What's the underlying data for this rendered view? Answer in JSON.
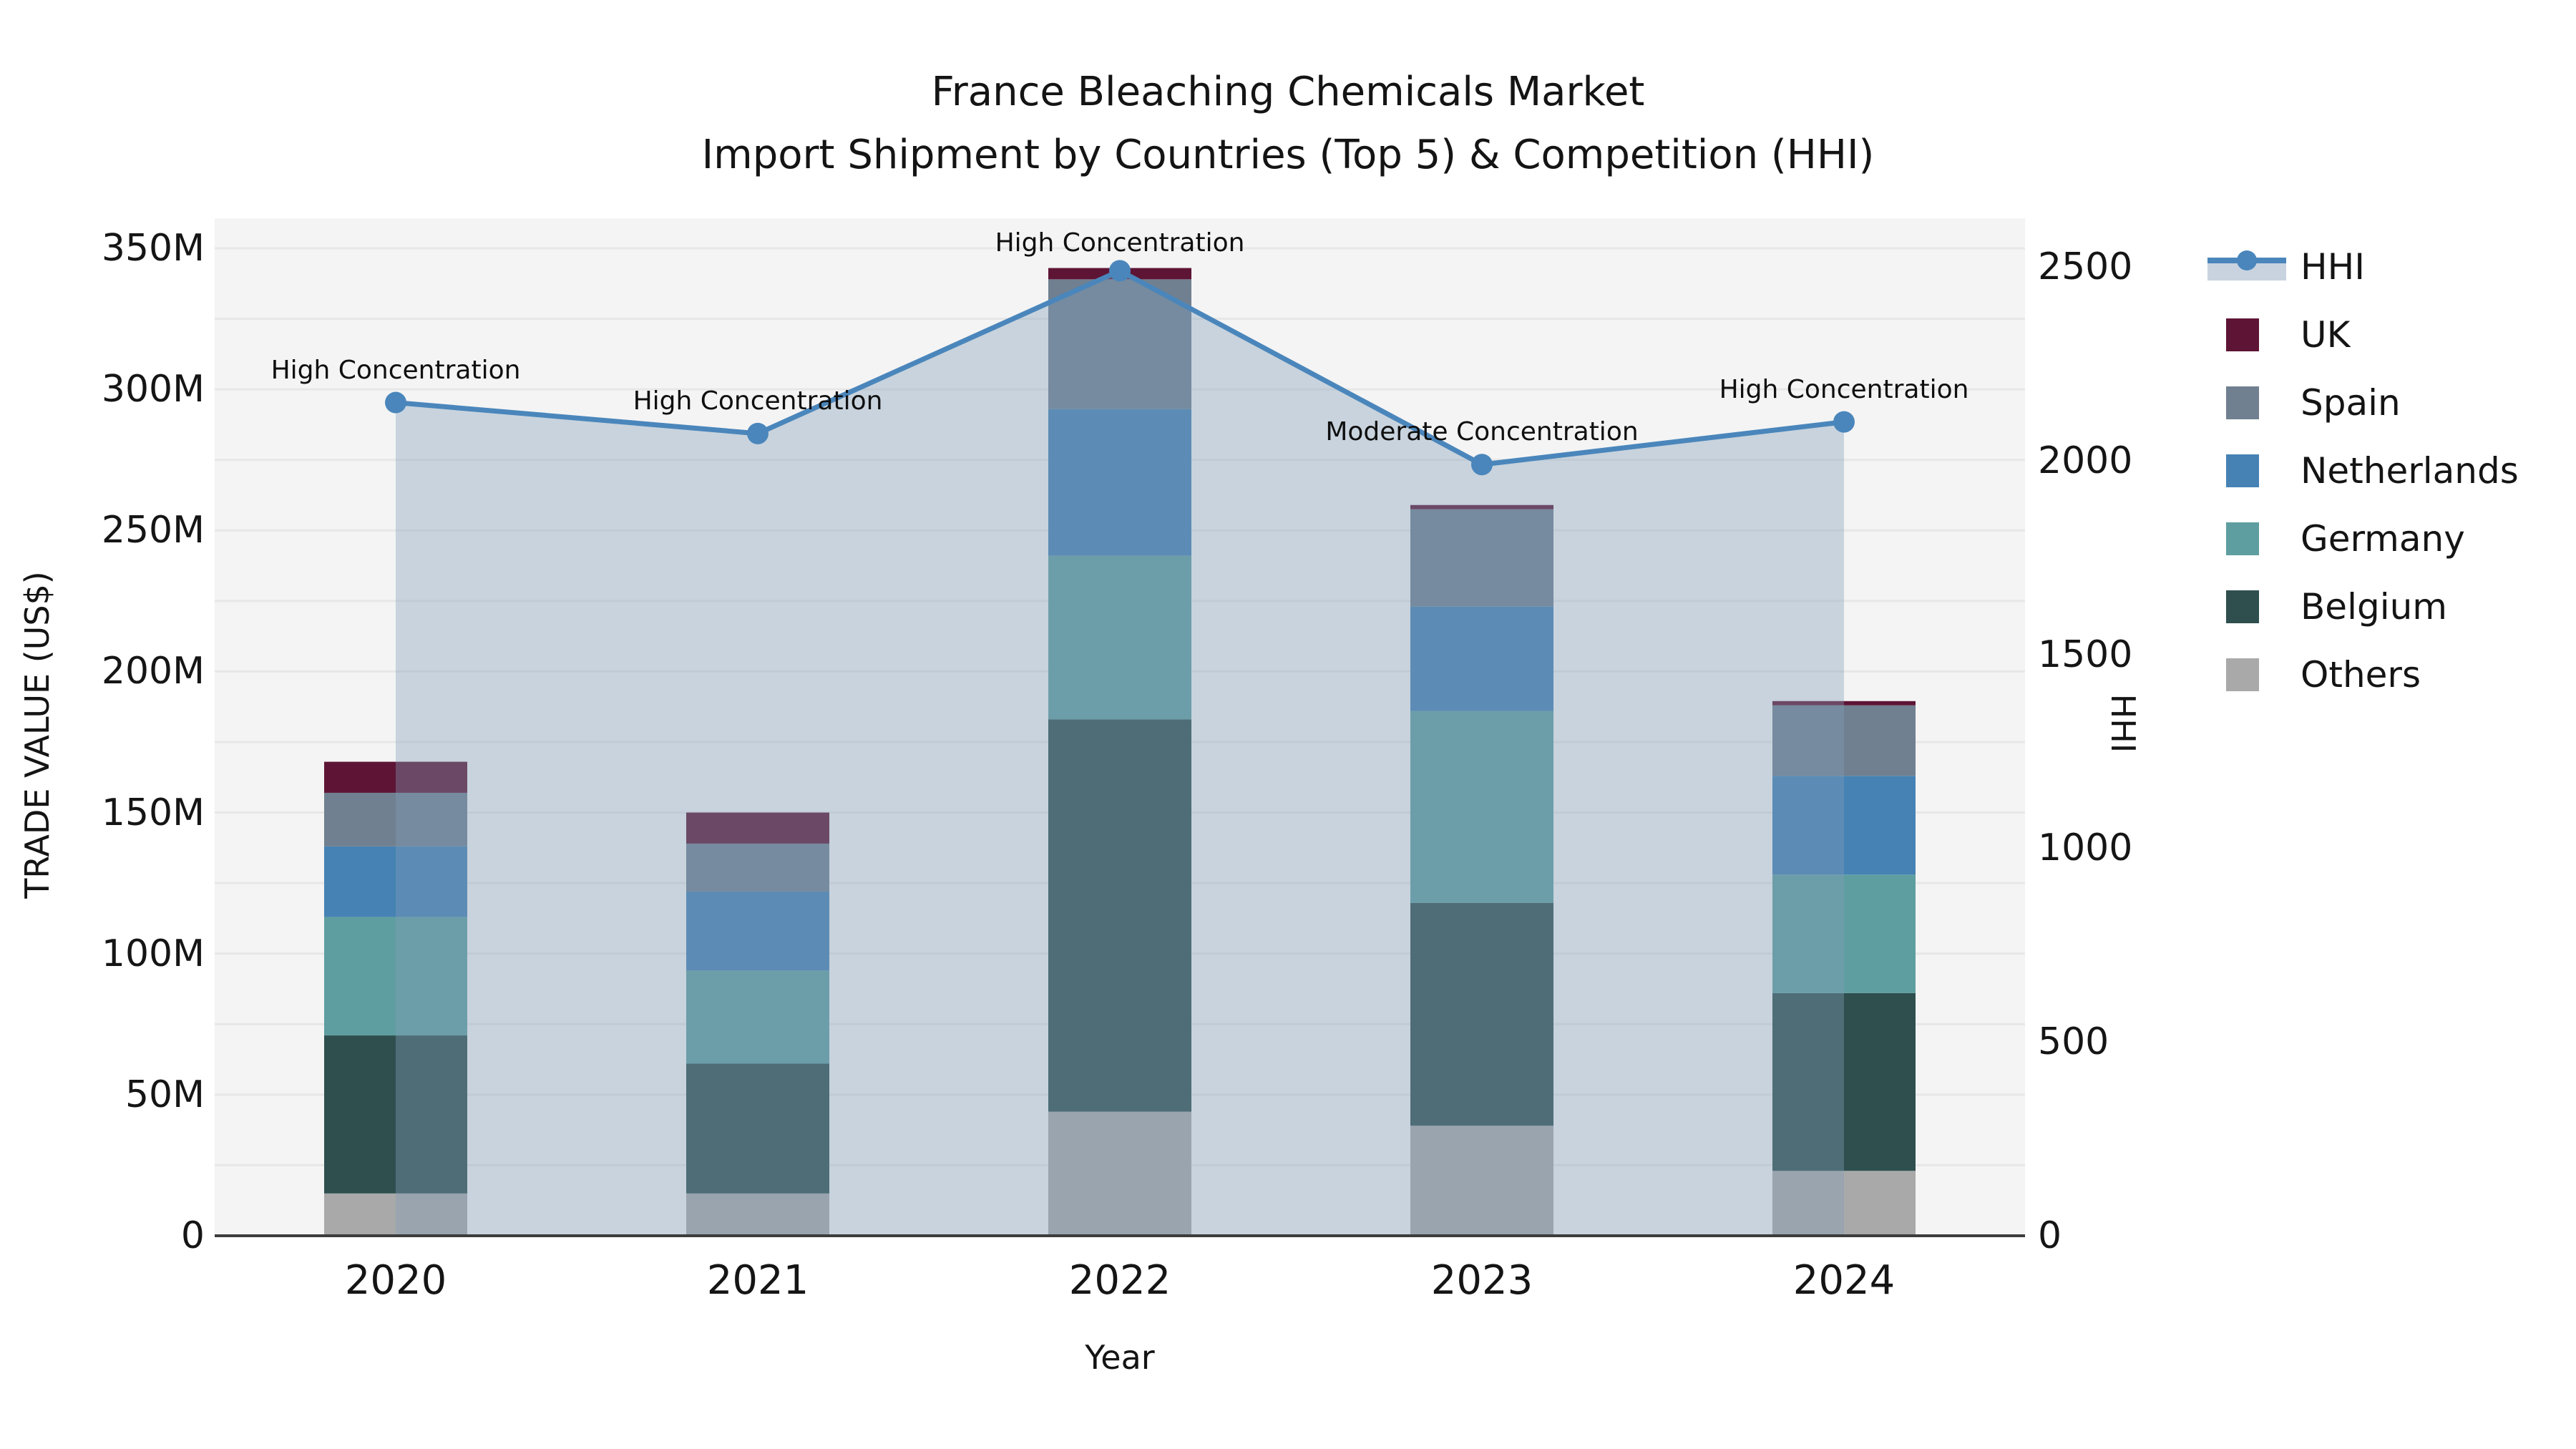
{
  "title": {
    "line1": "France Bleaching Chemicals Market",
    "line2": "Import Shipment by Countries (Top 5) & Competition (HHI)"
  },
  "chart_data": {
    "type": "stacked-bar+line",
    "unit": "USD millions",
    "categories": [
      "2020",
      "2021",
      "2022",
      "2023",
      "2024"
    ],
    "series": [
      {
        "name": "Others",
        "color": "#a9a9a9",
        "values": [
          15,
          15,
          44,
          39,
          23
        ]
      },
      {
        "name": "Belgium",
        "color": "#2f4f4f",
        "values": [
          56,
          46,
          139,
          79,
          63
        ]
      },
      {
        "name": "Germany",
        "color": "#5f9ea0",
        "values": [
          42,
          33,
          58,
          68,
          42
        ]
      },
      {
        "name": "Netherlands",
        "color": "#4682b4",
        "values": [
          25,
          28,
          52,
          37,
          35
        ]
      },
      {
        "name": "Spain",
        "color": "#708090",
        "values": [
          19,
          17,
          46,
          34.5,
          25
        ]
      },
      {
        "name": "UK",
        "color": "#5e1535",
        "values": [
          11,
          11,
          4,
          1.5,
          1.5
        ]
      }
    ],
    "bar_totals": [
      168,
      150,
      343,
      259,
      189.5
    ],
    "line": {
      "name": "HHI",
      "color": "#4a86bb",
      "area_fill": "rgba(130,158,184,0.38)",
      "values": [
        2150,
        2070,
        2490,
        1990,
        2100
      ]
    },
    "annotations": [
      {
        "category": "2020",
        "text": "High Concentration"
      },
      {
        "category": "2021",
        "text": "High Concentration"
      },
      {
        "category": "2022",
        "text": "High Concentration"
      },
      {
        "category": "2023",
        "text": "Moderate Concentration"
      },
      {
        "category": "2024",
        "text": "High Concentration"
      }
    ],
    "left_axis": {
      "label": "TRADE VALUE (US$)",
      "tick_labels": [
        "0",
        "50M",
        "100M",
        "150M",
        "200M",
        "250M",
        "300M",
        "350M"
      ],
      "tick_values": [
        0,
        50,
        100,
        150,
        200,
        250,
        300,
        350
      ],
      "range": [
        0,
        360
      ]
    },
    "right_axis": {
      "label": "HHI",
      "tick_labels": [
        "0",
        "500",
        "1000",
        "1500",
        "2000",
        "2500"
      ],
      "tick_values": [
        0,
        500,
        1000,
        1500,
        2000,
        2500
      ],
      "range": [
        0,
        2625
      ]
    },
    "x_axis": {
      "label": "Year"
    },
    "grid": {
      "show": true,
      "interval": 25
    },
    "legend_position": "right-top",
    "background": {
      "figure": "#ffffff",
      "plot": "#f4f4f4",
      "gridline": "#e7e7e7",
      "axis_line": "#3c3c3c"
    }
  },
  "legend": {
    "items": [
      {
        "label": "HHI",
        "type": "line",
        "color": "#4a86bb",
        "band": "#c9d3e0"
      },
      {
        "label": "UK",
        "type": "swatch",
        "color": "#5e1535"
      },
      {
        "label": "Spain",
        "type": "swatch",
        "color": "#708090"
      },
      {
        "label": "Netherlands",
        "type": "swatch",
        "color": "#4682b4"
      },
      {
        "label": "Germany",
        "type": "swatch",
        "color": "#5f9ea0"
      },
      {
        "label": "Belgium",
        "type": "swatch",
        "color": "#2f4f4f"
      },
      {
        "label": "Others",
        "type": "swatch",
        "color": "#a9a9a9"
      }
    ]
  }
}
